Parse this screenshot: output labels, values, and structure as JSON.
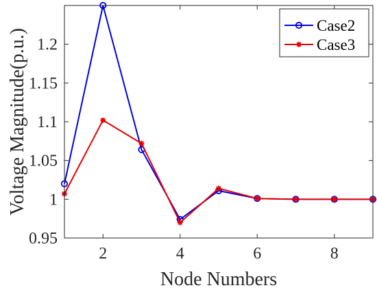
{
  "chart_data": {
    "type": "line",
    "title": "",
    "xlabel": "Node Numbers",
    "ylabel": "Voltage Magnitude(p.u.)",
    "x": [
      1,
      2,
      3,
      4,
      5,
      6,
      7,
      8,
      9
    ],
    "xlim": [
      1,
      9
    ],
    "ylim": [
      0.95,
      1.25
    ],
    "xticks": [
      2,
      4,
      6,
      8
    ],
    "xtick_labels": [
      "2",
      "4",
      "6",
      "8"
    ],
    "yticks": [
      0.95,
      1,
      1.05,
      1.1,
      1.15,
      1.2
    ],
    "ytick_labels": [
      "0.95",
      "1",
      "1.05",
      "1.1",
      "1.15",
      "1.2"
    ],
    "grid": false,
    "legend_position": "top-right",
    "series": [
      {
        "name": "Case2",
        "color": "#0000e6",
        "marker": "circle",
        "values": [
          1.02,
          1.25,
          1.064,
          0.974,
          1.011,
          1.001,
          1.0,
          1.0,
          1.0
        ]
      },
      {
        "name": "Case3",
        "color": "#e60000",
        "marker": "asterisk",
        "values": [
          1.007,
          1.102,
          1.072,
          0.97,
          1.014,
          1.001,
          1.0,
          1.0,
          1.0
        ]
      }
    ]
  }
}
